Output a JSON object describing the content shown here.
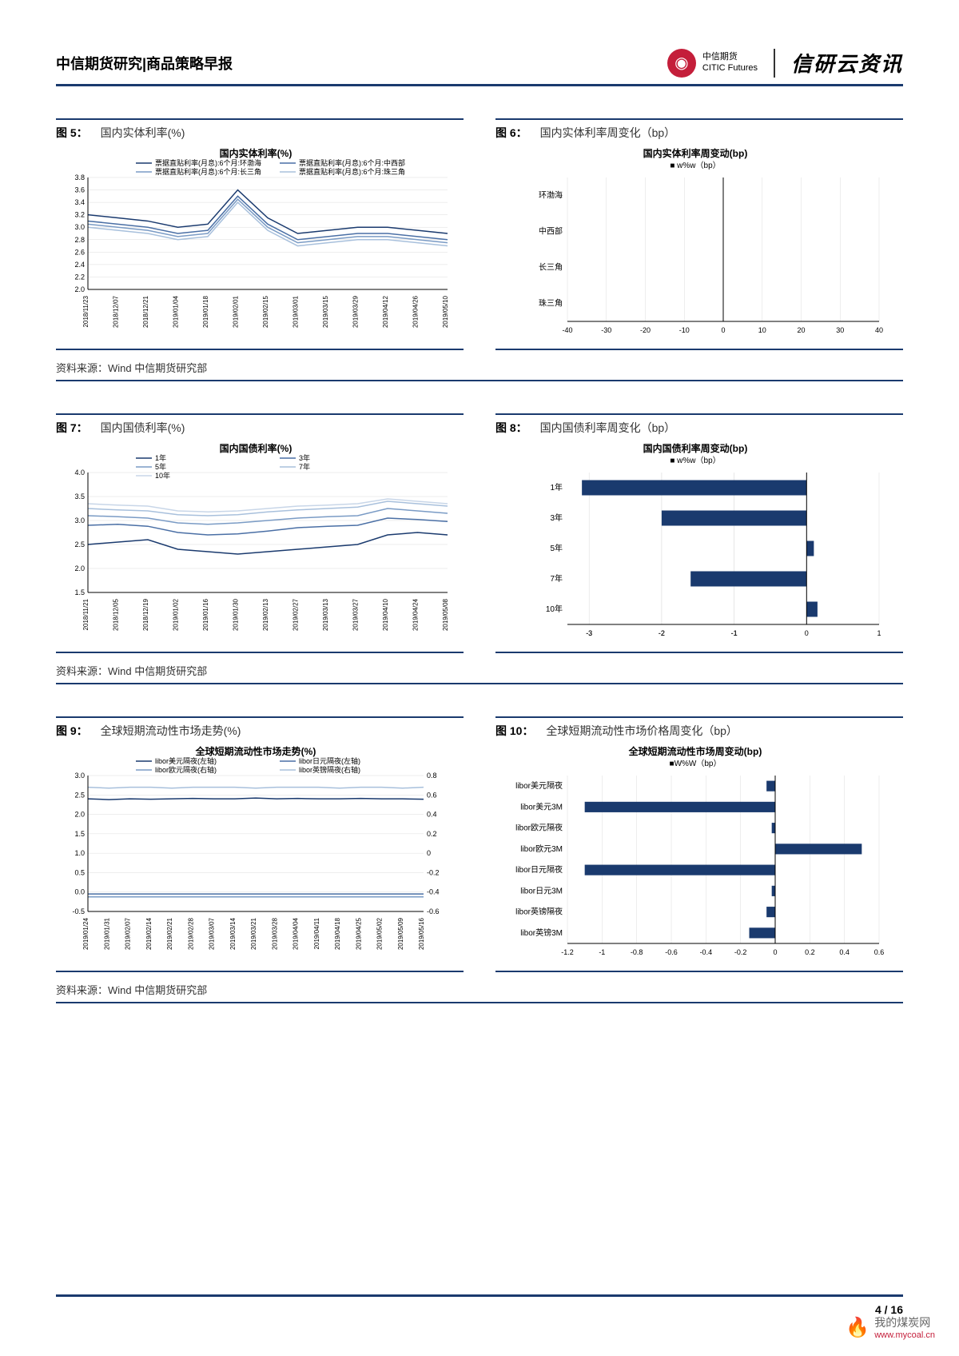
{
  "header": {
    "title": "中信期货研究|商品策略早报",
    "logo_cn": "中信期货",
    "logo_en": "CITIC Futures",
    "logo_right": "信研云资讯"
  },
  "source_text": "资料来源：Wind 中信期货研究部",
  "page": {
    "current": "4",
    "total": "16"
  },
  "watermark": {
    "text": "我的煤炭网",
    "url": "www.mycoal.cn"
  },
  "fig5": {
    "num": "图 5：",
    "caption": "国内实体利率(%)",
    "inner_title": "国内实体利率(%)",
    "legend": [
      "票据直贴利率(月息):6个月:环渤海",
      "票据直贴利率(月息):6个月:中西部",
      "票据直贴利率(月息):6个月:长三角",
      "票据直贴利率(月息):6个月:珠三角"
    ],
    "x_labels": [
      "2018/11/23",
      "2018/12/07",
      "2018/12/21",
      "2019/01/04",
      "2019/01/18",
      "2019/02/01",
      "2019/02/15",
      "2019/03/01",
      "2019/03/15",
      "2019/03/29",
      "2019/04/12",
      "2019/04/26",
      "2019/05/10"
    ],
    "y_ticks": [
      2.0,
      2.2,
      2.4,
      2.6,
      2.8,
      3.0,
      3.2,
      3.4,
      3.6,
      3.8
    ],
    "ylim": [
      2.0,
      3.8
    ],
    "series_colors": [
      "#1a3a6e",
      "#4a6fa5",
      "#7a9bc5",
      "#a8c0dc"
    ],
    "series": [
      [
        3.2,
        3.15,
        3.1,
        3.0,
        3.05,
        3.6,
        3.15,
        2.9,
        2.95,
        3.0,
        3.0,
        2.95,
        2.9
      ],
      [
        3.1,
        3.05,
        3.0,
        2.9,
        2.95,
        3.5,
        3.05,
        2.8,
        2.85,
        2.9,
        2.9,
        2.85,
        2.8
      ],
      [
        3.05,
        3.0,
        2.95,
        2.85,
        2.9,
        3.45,
        3.0,
        2.75,
        2.8,
        2.85,
        2.85,
        2.8,
        2.75
      ],
      [
        3.0,
        2.95,
        2.9,
        2.8,
        2.85,
        3.4,
        2.95,
        2.7,
        2.75,
        2.8,
        2.8,
        2.75,
        2.7
      ]
    ]
  },
  "fig6": {
    "num": "图 6：",
    "caption": "国内实体利率周变化（bp）",
    "inner_title": "国内实体利率周变动(bp)",
    "legend": "■ w%w（bp）",
    "categories": [
      "环渤海",
      "中西部",
      "长三角",
      "珠三角"
    ],
    "x_ticks": [
      -40,
      -30,
      -20,
      -10,
      0,
      10,
      20,
      30,
      40
    ],
    "xlim": [
      -40,
      40
    ],
    "values": [
      0,
      0,
      0,
      0
    ],
    "bar_color": "#1a3a6e"
  },
  "fig7": {
    "num": "图 7：",
    "caption": "国内国债利率(%)",
    "inner_title": "国内国债利率(%)",
    "legend": [
      "1年",
      "3年",
      "5年",
      "7年",
      "10年"
    ],
    "x_labels": [
      "2018/11/21",
      "2018/12/05",
      "2018/12/19",
      "2019/01/02",
      "2019/01/16",
      "2019/01/30",
      "2019/02/13",
      "2019/02/27",
      "2019/03/13",
      "2019/03/27",
      "2019/04/10",
      "2019/04/24",
      "2019/05/08"
    ],
    "y_ticks": [
      1.5,
      2.0,
      2.5,
      3.0,
      3.5,
      4.0
    ],
    "ylim": [
      1.5,
      4.0
    ],
    "series_colors": [
      "#1a3a6e",
      "#4a6fa5",
      "#7a9bc5",
      "#a8c0dc",
      "#c8d6e8"
    ],
    "series": [
      [
        2.5,
        2.55,
        2.6,
        2.4,
        2.35,
        2.3,
        2.35,
        2.4,
        2.45,
        2.5,
        2.7,
        2.75,
        2.7
      ],
      [
        2.9,
        2.92,
        2.88,
        2.75,
        2.7,
        2.72,
        2.78,
        2.85,
        2.88,
        2.9,
        3.05,
        3.02,
        2.98
      ],
      [
        3.1,
        3.08,
        3.05,
        2.95,
        2.92,
        2.95,
        3.0,
        3.05,
        3.08,
        3.1,
        3.25,
        3.2,
        3.15
      ],
      [
        3.25,
        3.22,
        3.2,
        3.12,
        3.1,
        3.12,
        3.18,
        3.22,
        3.25,
        3.28,
        3.4,
        3.35,
        3.3
      ],
      [
        3.35,
        3.32,
        3.3,
        3.2,
        3.18,
        3.2,
        3.25,
        3.3,
        3.32,
        3.35,
        3.45,
        3.4,
        3.35
      ]
    ]
  },
  "fig8": {
    "num": "图 8：",
    "caption": "国内国债利率周变化（bp）",
    "inner_title": "国内国债利率周变动(bp)",
    "legend": "■ w%w（bp）",
    "categories": [
      "1年",
      "3年",
      "5年",
      "7年",
      "10年"
    ],
    "x_ticks": [
      -3,
      -3,
      -2,
      -2,
      -1,
      -1,
      0,
      1
    ],
    "x_tick_labels": [
      "-3",
      "-3",
      "-2",
      "-2",
      "-1",
      "-1",
      "0",
      "1"
    ],
    "xlim": [
      -3.3,
      1
    ],
    "values": [
      -3.1,
      -2.0,
      0.1,
      -1.6,
      0.15
    ],
    "bar_color": "#1a3a6e"
  },
  "fig9": {
    "num": "图 9：",
    "caption": "全球短期流动性市场走势(%)",
    "inner_title": "全球短期流动性市场走势(%)",
    "legend": [
      "libor美元隔夜(左轴)",
      "libor日元隔夜(左轴)",
      "libor欧元隔夜(右轴)",
      "libor英镑隔夜(右轴)"
    ],
    "x_labels": [
      "2019/01/24",
      "2019/01/31",
      "2019/02/07",
      "2019/02/14",
      "2019/02/21",
      "2019/02/28",
      "2019/03/07",
      "2019/03/14",
      "2019/03/21",
      "2019/03/28",
      "2019/04/04",
      "2019/04/11",
      "2019/04/18",
      "2019/04/25",
      "2019/05/02",
      "2019/05/09",
      "2019/05/16"
    ],
    "y_ticks_left": [
      -0.5,
      0.0,
      0.5,
      1.0,
      1.5,
      2.0,
      2.5,
      3.0
    ],
    "y_ticks_right": [
      -0.6,
      -0.4,
      -0.2,
      0,
      0.2,
      0.4,
      0.6,
      0.8
    ],
    "ylim_left": [
      -0.5,
      3.0
    ],
    "ylim_right": [
      -0.6,
      0.8
    ],
    "series_colors": [
      "#1a3a6e",
      "#4a6fa5",
      "#7a9bc5",
      "#a8c0dc"
    ],
    "series_left": [
      [
        2.4,
        2.38,
        2.4,
        2.39,
        2.4,
        2.41,
        2.4,
        2.4,
        2.42,
        2.4,
        2.41,
        2.4,
        2.4,
        2.41,
        2.4,
        2.4,
        2.39
      ],
      [
        -0.05,
        -0.05,
        -0.05,
        -0.05,
        -0.05,
        -0.05,
        -0.05,
        -0.05,
        -0.05,
        -0.05,
        -0.05,
        -0.05,
        -0.05,
        -0.05,
        -0.05,
        -0.05,
        -0.05
      ]
    ],
    "series_right": [
      [
        -0.45,
        -0.45,
        -0.45,
        -0.45,
        -0.45,
        -0.45,
        -0.45,
        -0.45,
        -0.45,
        -0.45,
        -0.45,
        -0.45,
        -0.45,
        -0.45,
        -0.45,
        -0.45,
        -0.45
      ],
      [
        0.68,
        0.67,
        0.68,
        0.68,
        0.67,
        0.68,
        0.68,
        0.68,
        0.67,
        0.68,
        0.68,
        0.68,
        0.67,
        0.68,
        0.68,
        0.67,
        0.68
      ]
    ]
  },
  "fig10": {
    "num": "图 10：",
    "caption": "全球短期流动性市场价格周变化（bp）",
    "inner_title": "全球短期流动性市场周变动(bp)",
    "legend": "■W%W（bp）",
    "categories": [
      "libor美元隔夜",
      "libor美元3M",
      "libor欧元隔夜",
      "libor欧元3M",
      "libor日元隔夜",
      "libor日元3M",
      "libor英镑隔夜",
      "libor英镑3M"
    ],
    "x_ticks": [
      -1.2,
      -1.0,
      -0.8,
      -0.6,
      -0.4,
      -0.2,
      0.0,
      0.2,
      0.4,
      0.6
    ],
    "xlim": [
      -1.2,
      0.6
    ],
    "values": [
      -0.05,
      -1.1,
      -0.02,
      0.5,
      -1.1,
      -0.02,
      -0.05,
      -0.15
    ],
    "bar_color": "#1a3a6e"
  }
}
